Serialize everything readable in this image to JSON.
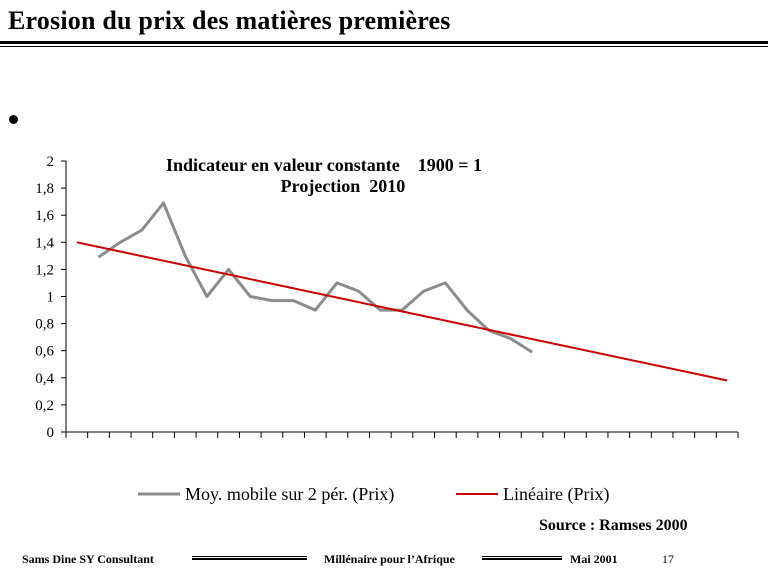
{
  "slide": {
    "title": "Erosion du prix des matières premières",
    "source": "Source : Ramses 2000",
    "footer": {
      "author": "Sams Dine SY Consultant",
      "event": "Millénaire pour l’Afrique",
      "date": "Mai 2001",
      "page": "17"
    }
  },
  "chart_data": {
    "type": "line",
    "title": "Indicateur en valeur constante    1900 = 1",
    "subtitle": "Projection  2010",
    "xlabel": "",
    "ylabel": "",
    "ylim": [
      0,
      2
    ],
    "yticks": [
      "0",
      "0,2",
      "0,4",
      "0,6",
      "0,8",
      "1",
      "1,2",
      "1,4",
      "1,6",
      "1,8",
      "2"
    ],
    "grid": false,
    "legend_position": "bottom",
    "x_tick_count": 31,
    "series": [
      {
        "name": "Moy. mobile sur 2 pér. (Prix)",
        "color": "#8c8c8c",
        "x": [
          2,
          3,
          4,
          5,
          6,
          7,
          8,
          9,
          10,
          11,
          12,
          13,
          14,
          15,
          16,
          17,
          18,
          19,
          20,
          21,
          22
        ],
        "values": [
          1.29,
          1.4,
          1.49,
          1.69,
          1.3,
          1.0,
          1.2,
          1.0,
          0.97,
          0.97,
          0.9,
          1.1,
          1.04,
          0.9,
          0.9,
          1.04,
          1.1,
          0.9,
          0.75,
          0.69,
          0.59
        ]
      },
      {
        "name": "Linéaire (Prix)",
        "color": "#cc0000",
        "x": [
          1,
          31
        ],
        "values": [
          1.4,
          0.38
        ]
      }
    ]
  }
}
